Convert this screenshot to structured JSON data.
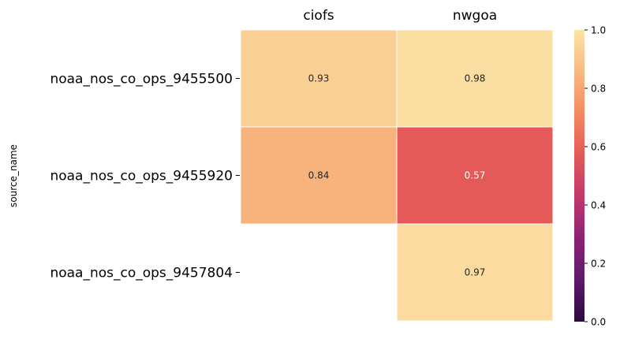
{
  "chart_data": {
    "type": "heatmap",
    "title": "",
    "xlabel": "",
    "ylabel": "source_name",
    "x_categories": [
      "ciofs",
      "nwgoa"
    ],
    "y_categories": [
      "noaa_nos_co_ops_9455500",
      "noaa_nos_co_ops_9455920",
      "noaa_nos_co_ops_9457804"
    ],
    "values": [
      [
        0.93,
        0.98
      ],
      [
        0.84,
        0.57
      ],
      [
        null,
        0.97
      ]
    ],
    "value_labels": [
      [
        "0.93",
        "0.98"
      ],
      [
        "0.84",
        "0.57"
      ],
      [
        "",
        "0.97"
      ]
    ],
    "colorbar": {
      "vmin": 0.0,
      "vmax": 1.0,
      "ticks": [
        "0.0",
        "0.2",
        "0.4",
        "0.6",
        "0.8",
        "1.0"
      ],
      "colormap": "magma-light",
      "stops": [
        "#2b0a3d",
        "#5c1a6b",
        "#8e2173",
        "#c2386b",
        "#e35a58",
        "#f4895f",
        "#f9b980",
        "#fbe4a8"
      ]
    },
    "x_axis_position": "top",
    "grid": false,
    "cell_border_color": "#ffffff"
  }
}
